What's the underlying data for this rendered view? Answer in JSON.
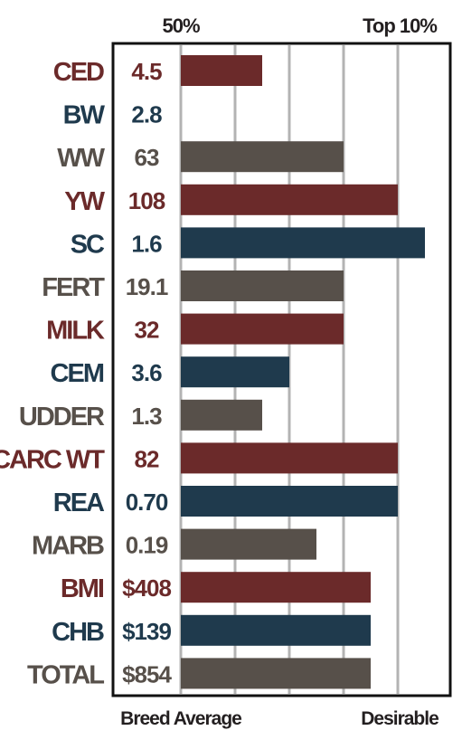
{
  "chart_data": {
    "type": "bar",
    "orientation": "horizontal",
    "top_labels": {
      "left": "50%",
      "right": "Top 10%"
    },
    "bottom_labels": {
      "left": "Breed Average",
      "right": "Desirable"
    },
    "xlim": [
      0,
      9
    ],
    "grid": true,
    "colors": {
      "maroon": "#6b2a2a",
      "navy": "#1f3a4d",
      "taupe": "#57504a",
      "grid": "#b3b3b3",
      "frame": "#111111"
    },
    "categories": [
      "CED",
      "BW",
      "WW",
      "YW",
      "SC",
      "FERT",
      "MILK",
      "CEM",
      "UDDER",
      "CARC WT",
      "REA",
      "MARB",
      "BMI",
      "CHB",
      "TOTAL"
    ],
    "values_text": [
      "4.5",
      "2.8",
      "63",
      "108",
      "1.6",
      "19.1",
      "32",
      "3.6",
      "1.3",
      "82",
      "0.70",
      "0.19",
      "$408",
      "$139",
      "$854"
    ],
    "bar_lengths": [
      3,
      0,
      6,
      8,
      9,
      6,
      6,
      4,
      3,
      8,
      8,
      5,
      7,
      7,
      7
    ],
    "bar_colors": [
      "maroon",
      "navy",
      "taupe",
      "maroon",
      "navy",
      "taupe",
      "maroon",
      "navy",
      "taupe",
      "maroon",
      "navy",
      "taupe",
      "maroon",
      "navy",
      "taupe"
    ]
  }
}
